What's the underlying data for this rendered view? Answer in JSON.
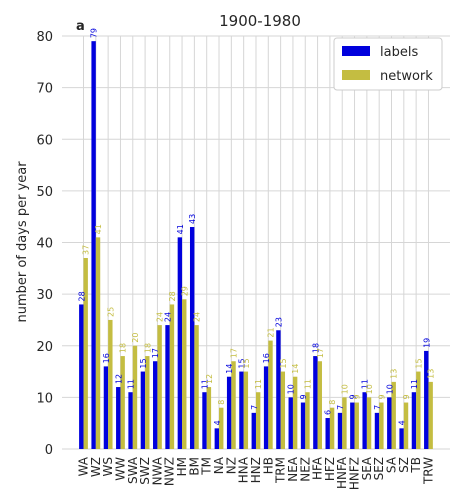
{
  "chart_data": {
    "type": "bar",
    "title": "1900-1980",
    "panel_label": "a",
    "xlabel": "",
    "ylabel": "number of days per year",
    "ylim": [
      0,
      80
    ],
    "yticks": [
      0,
      10,
      20,
      30,
      40,
      50,
      60,
      70,
      80
    ],
    "grid": true,
    "legend_position": "top-right",
    "categories": [
      "WA",
      "WZ",
      "WS",
      "WW",
      "SWA",
      "SWZ",
      "NWA",
      "NWZ",
      "HM",
      "BM",
      "TM",
      "NA",
      "NZ",
      "HNA",
      "HNZ",
      "HB",
      "TRM",
      "NEA",
      "NEZ",
      "HFA",
      "HFZ",
      "HNFA",
      "HNFZ",
      "SEA",
      "SEZ",
      "SA",
      "SZ",
      "TB",
      "TRW"
    ],
    "series": [
      {
        "name": "labels",
        "color": "#0000dd",
        "values": [
          28,
          79,
          16,
          12,
          11,
          15,
          17,
          24,
          41,
          43,
          11,
          4,
          14,
          15,
          7,
          16,
          23,
          10,
          9,
          18,
          6,
          7,
          9,
          11,
          7,
          10,
          4,
          11,
          19
        ]
      },
      {
        "name": "network",
        "color": "#c4bd41",
        "values": [
          37,
          41,
          25,
          18,
          20,
          18,
          24,
          28,
          29,
          24,
          12,
          8,
          17,
          15,
          11,
          21,
          15,
          14,
          11,
          17,
          8,
          10,
          9,
          10,
          9,
          13,
          9,
          15,
          13
        ]
      }
    ]
  }
}
